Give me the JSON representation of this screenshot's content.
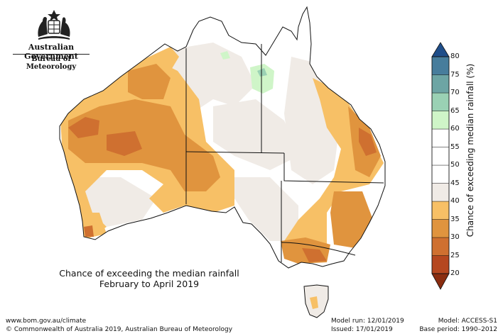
{
  "header": {
    "government": "Australian Government",
    "agency": "Bureau of Meteorology"
  },
  "map": {
    "title_line1": "Chance of exceeding the median rainfall",
    "title_line2": "February to April 2019",
    "categories": [
      {
        "range": "20-25",
        "color": "#b5471f"
      },
      {
        "range": "25-30",
        "color": "#cf7030"
      },
      {
        "range": "30-35",
        "color": "#e0943e"
      },
      {
        "range": "35-40",
        "color": "#f7c066"
      },
      {
        "range": "40-45",
        "color": "#f0ebe6"
      },
      {
        "range": "45-55",
        "color": "#ffffff"
      },
      {
        "range": "55-60",
        "color": "#ffffff"
      },
      {
        "range": "60-65",
        "color": "#cff5c8"
      },
      {
        "range": "65-70",
        "color": "#9ad1b4"
      },
      {
        "range": "70-75",
        "color": "#6da5a4"
      },
      {
        "range": "75-80",
        "color": "#477d9c"
      }
    ],
    "border_color": "#111111"
  },
  "legend": {
    "title": "Chance of exceeding median rainfall (%)",
    "ticks": [
      "20",
      "25",
      "30",
      "35",
      "40",
      "45",
      "50",
      "55",
      "60",
      "65",
      "70",
      "75",
      "80"
    ],
    "colors": [
      "#b5471f",
      "#cf7030",
      "#e0943e",
      "#f7c066",
      "#f0ebe6",
      "#ffffff",
      "#ffffff",
      "#ffffff",
      "#cff5c8",
      "#9ad1b4",
      "#6da5a4",
      "#477d9c"
    ],
    "low_arrow_color": "#8a2d10",
    "high_arrow_color": "#1f4e8a"
  },
  "footer": {
    "website": "www.bom.gov.au/climate",
    "copyright": "© Commonwealth of Australia 2019, Australian Bureau of Meteorology",
    "model_run": "Model run: 12/01/2019",
    "issued": "Issued: 17/01/2019",
    "model": "Model: ACCESS-S1",
    "base_period": "Base period: 1990–2012"
  }
}
